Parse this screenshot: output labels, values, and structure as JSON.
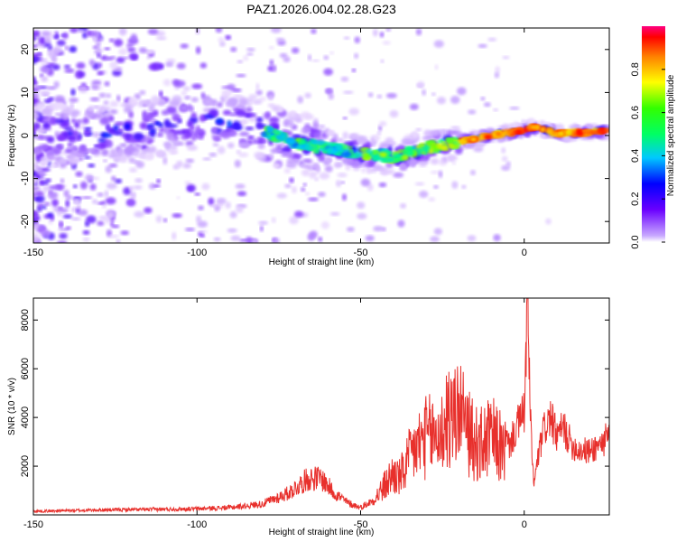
{
  "title": "PAZ1.2026.004.02.28.G23",
  "chart_data": [
    {
      "type": "heatmap",
      "xlabel": "Height of straight line (km)",
      "ylabel": "Frequency (Hz)",
      "xlim": [
        -150,
        26
      ],
      "ylim": [
        -25,
        25
      ],
      "xticks": [
        -150,
        -100,
        -50,
        0
      ],
      "yticks": [
        -20,
        -10,
        0,
        10,
        20
      ],
      "colorbar": {
        "label": "Normalized spectral amplitude",
        "range": [
          0,
          1
        ],
        "ticks": [
          0.0,
          0.2,
          0.4,
          0.6,
          0.8
        ]
      },
      "ridge": {
        "x": [
          -150,
          -130,
          -110,
          -100,
          -90,
          -80,
          -72,
          -60,
          -50,
          -40,
          -30,
          -20,
          -10,
          0,
          3,
          10,
          26
        ],
        "y": [
          0,
          0,
          2.5,
          3.5,
          3,
          1.5,
          -1.5,
          -3,
          -4,
          -5,
          -3,
          -1.5,
          0,
          1.2,
          2,
          0.5,
          1
        ]
      }
    },
    {
      "type": "line",
      "xlabel": "Height of straight line (km)",
      "ylabel": "SNR (10 * v/v)",
      "xlim": [
        -150,
        26
      ],
      "ylim": [
        0,
        8900
      ],
      "xticks": [
        -150,
        -100,
        -50,
        0
      ],
      "yticks": [
        2000,
        4000,
        6000,
        8000
      ],
      "series": [
        {
          "name": "SNR",
          "color": "#e8302c",
          "x": [
            -150,
            -130,
            -110,
            -100,
            -90,
            -80,
            -72,
            -66,
            -62,
            -58,
            -54,
            -50,
            -46,
            -42,
            -40,
            -38,
            -34,
            -30,
            -26,
            -22,
            -20,
            -18,
            -14,
            -10,
            -6,
            -4,
            -2,
            0,
            1,
            2,
            3,
            4,
            6,
            8,
            10,
            12,
            14,
            16,
            20,
            24,
            26
          ],
          "y": [
            150,
            200,
            230,
            250,
            300,
            450,
            900,
            1500,
            1500,
            900,
            500,
            300,
            600,
            1300,
            1700,
            1500,
            2600,
            3200,
            3300,
            3800,
            4500,
            3500,
            2800,
            3200,
            2600,
            3000,
            3700,
            4200,
            8800,
            3500,
            1200,
            2200,
            3500,
            4000,
            3200,
            3600,
            3000,
            2700,
            2600,
            3000,
            3200
          ]
        }
      ]
    }
  ]
}
